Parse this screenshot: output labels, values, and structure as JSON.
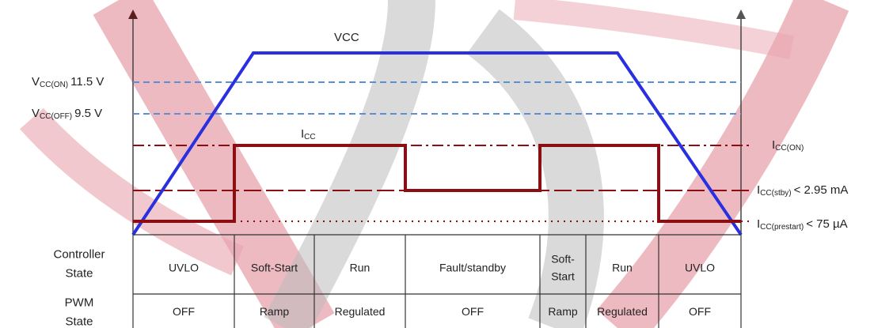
{
  "signals": {
    "vcc": "VCC",
    "icc": {
      "main": "I",
      "sub": "CC"
    }
  },
  "left_levels": [
    {
      "main": "V",
      "sub": "CC(ON)",
      "text": "11.5 V"
    },
    {
      "main": "V",
      "sub": "CC(OFF)",
      "text": "9.5 V"
    }
  ],
  "right_levels": [
    {
      "main": "I",
      "sub": "CC(ON)"
    },
    {
      "main": "I",
      "sub": "CC(stby)",
      "text": "< 2.95 mA"
    },
    {
      "main": "I",
      "sub": "CC(prestart)",
      "text": "< 75 µA"
    }
  ],
  "table": {
    "row_headers": [
      [
        "Controller",
        "State"
      ],
      [
        "PWM",
        "State"
      ]
    ],
    "controller_state": [
      "UVLO",
      "Soft-Start",
      "Run",
      "Fault/standby",
      [
        "Soft-",
        "Start"
      ],
      "Run",
      "UVLO"
    ],
    "pwm_state": [
      "OFF",
      "Ramp",
      "Regulated",
      "OFF",
      "Ramp",
      "Regulated",
      "OFF"
    ]
  }
}
